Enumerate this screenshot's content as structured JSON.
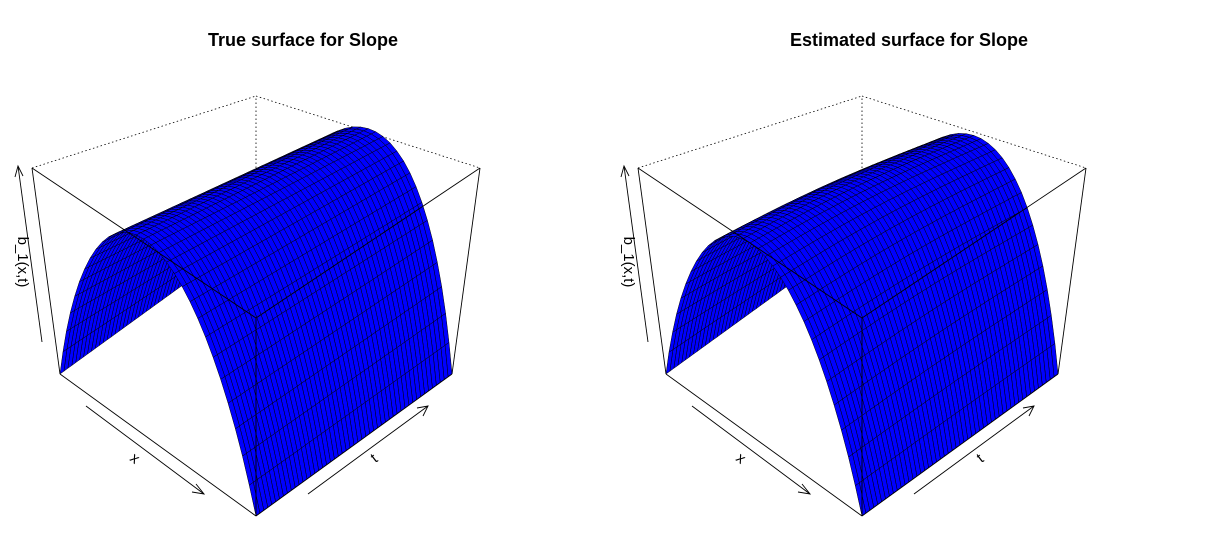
{
  "chart_data": [
    {
      "type": "surface",
      "title": "True surface for Slope",
      "xlabel": "x",
      "ylabel": "t",
      "zlabel": "b_1(x,t)",
      "surface_color": "#0000ff",
      "edge_color": "#000000",
      "box": true,
      "axis_ticks": false,
      "surface_shape": "parabolic ridge in x, roughly constant along t"
    },
    {
      "type": "surface",
      "title": "Estimated surface for Slope",
      "xlabel": "x",
      "ylabel": "t",
      "zlabel": "b_1(x,t)",
      "surface_color": "#0000ff",
      "edge_color": "#000000",
      "box": true,
      "axis_ticks": false,
      "surface_shape": "parabolic ridge in x with slight variation along t"
    }
  ]
}
